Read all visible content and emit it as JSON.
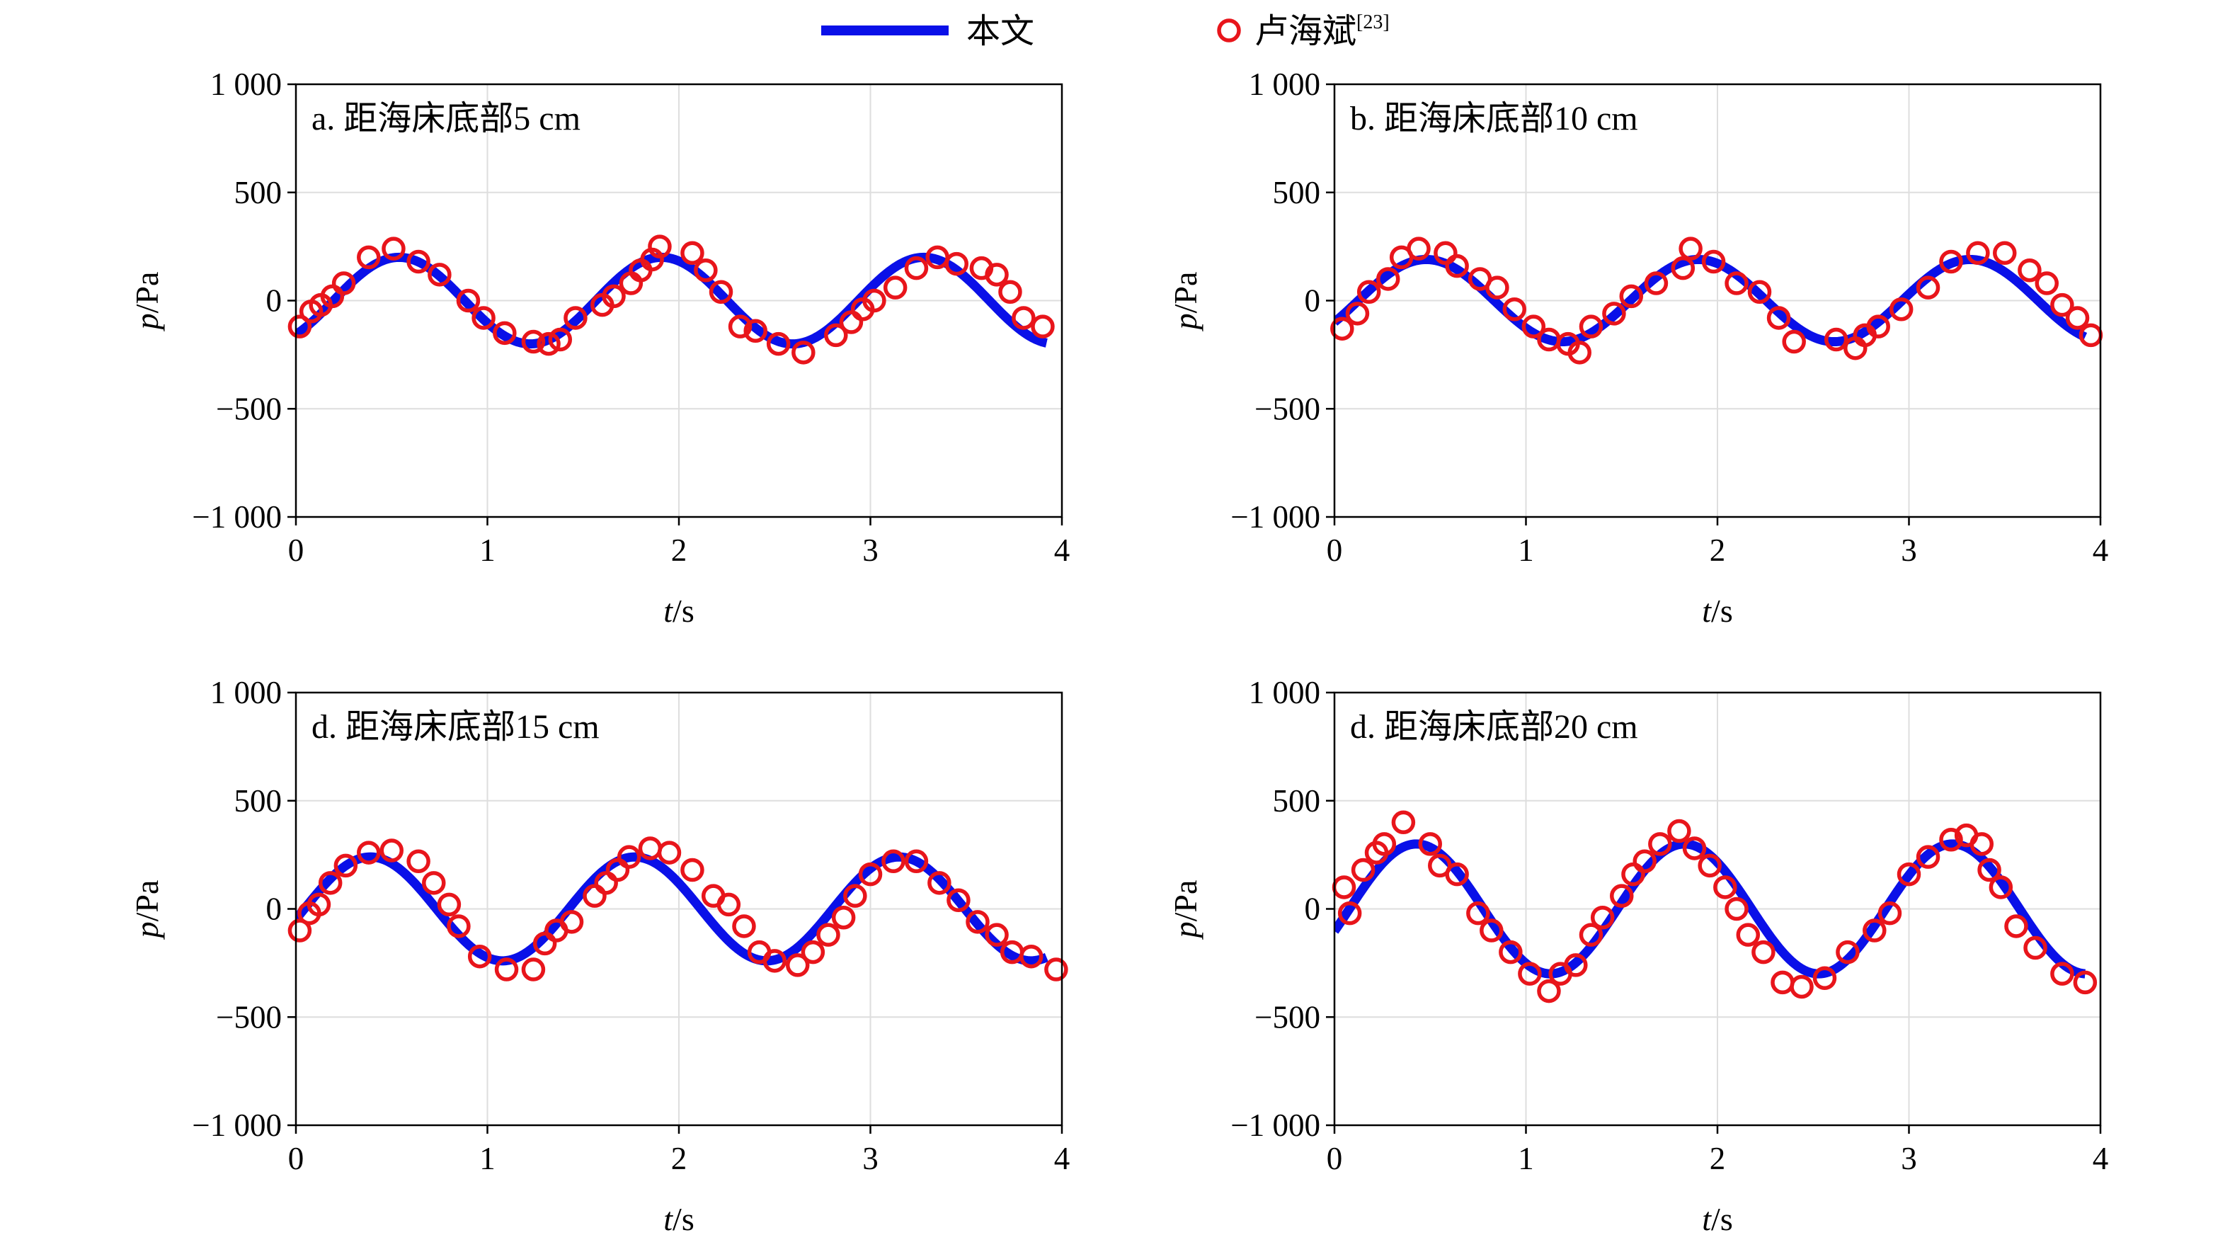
{
  "legend": {
    "model_label": "本文",
    "ref_label": "卢海斌",
    "ref_cite": "[23]",
    "model_color": "#0a10e8",
    "ref_color": "#e8151b"
  },
  "chart_data": [
    {
      "type": "line+scatter",
      "title": "a. 距海床底部5 cm",
      "xlabel_var": "t",
      "xlabel_unit": "/s",
      "ylabel_var": "p",
      "ylabel_unit": "/Pa",
      "xlim": [
        0,
        4
      ],
      "ylim": [
        -1000,
        1000
      ],
      "xticks": [
        "0",
        "1",
        "2",
        "3",
        "4"
      ],
      "yticks": [
        "1 000",
        "500",
        "0",
        "−500",
        "−1 000"
      ],
      "grid": true,
      "model": {
        "name": "本文",
        "amplitude": 200,
        "period": 1.37,
        "phase": -0.9
      },
      "measured": {
        "name": "卢海斌",
        "x": [
          0.02,
          0.08,
          0.13,
          0.19,
          0.25,
          0.38,
          0.51,
          0.64,
          0.75,
          0.9,
          0.98,
          1.09,
          1.24,
          1.32,
          1.38,
          1.46,
          1.6,
          1.66,
          1.75,
          1.8,
          1.86,
          1.9,
          2.07,
          2.14,
          2.22,
          2.32,
          2.4,
          2.52,
          2.65,
          2.82,
          2.9,
          2.96,
          3.02,
          3.13,
          3.24,
          3.35,
          3.45,
          3.58,
          3.66,
          3.73,
          3.8,
          3.9
        ],
        "y": [
          -120,
          -50,
          -20,
          20,
          80,
          200,
          240,
          180,
          120,
          0,
          -80,
          -150,
          -190,
          -200,
          -180,
          -80,
          -20,
          20,
          80,
          140,
          190,
          250,
          220,
          140,
          40,
          -120,
          -140,
          -200,
          -240,
          -160,
          -100,
          -40,
          0,
          60,
          150,
          200,
          170,
          150,
          120,
          40,
          -80,
          -120
        ]
      }
    },
    {
      "type": "line+scatter",
      "title": "b. 距海床底部10 cm",
      "xlabel_var": "t",
      "xlabel_unit": "/s",
      "ylabel_var": "p",
      "ylabel_unit": "/Pa",
      "xlim": [
        0,
        4
      ],
      "ylim": [
        -1000,
        1000
      ],
      "xticks": [
        "0",
        "1",
        "2",
        "3",
        "4"
      ],
      "yticks": [
        "1 000",
        "500",
        "0",
        "−500",
        "−1 000"
      ],
      "grid": true,
      "model": {
        "name": "本文",
        "amplitude": 190,
        "period": 1.42,
        "phase": -0.55
      },
      "measured": {
        "name": "卢海斌",
        "x": [
          0.04,
          0.12,
          0.18,
          0.28,
          0.35,
          0.44,
          0.58,
          0.64,
          0.76,
          0.85,
          0.94,
          1.04,
          1.12,
          1.22,
          1.28,
          1.34,
          1.46,
          1.55,
          1.68,
          1.82,
          1.86,
          1.98,
          2.1,
          2.22,
          2.32,
          2.4,
          2.62,
          2.72,
          2.77,
          2.84,
          2.96,
          3.1,
          3.22,
          3.36,
          3.5,
          3.63,
          3.72,
          3.8,
          3.88,
          3.95
        ],
        "y": [
          -130,
          -60,
          40,
          100,
          200,
          240,
          220,
          160,
          100,
          60,
          -40,
          -120,
          -180,
          -200,
          -240,
          -120,
          -60,
          20,
          80,
          150,
          240,
          180,
          80,
          40,
          -80,
          -190,
          -180,
          -220,
          -160,
          -120,
          -40,
          60,
          180,
          220,
          220,
          140,
          80,
          -20,
          -80,
          -160
        ]
      }
    },
    {
      "type": "line+scatter",
      "title": "d. 距海床底部15 cm",
      "xlabel_var": "t",
      "xlabel_unit": "/s",
      "ylabel_var": "p",
      "ylabel_unit": "/Pa",
      "xlim": [
        0,
        4
      ],
      "ylim": [
        -1000,
        1000
      ],
      "xticks": [
        "0",
        "1",
        "2",
        "3",
        "4"
      ],
      "yticks": [
        "1 000",
        "500",
        "0",
        "−500",
        "−1 000"
      ],
      "grid": true,
      "model": {
        "name": "本文",
        "amplitude": 240,
        "period": 1.38,
        "phase": -0.2
      },
      "measured": {
        "name": "卢海斌",
        "x": [
          0.02,
          0.07,
          0.12,
          0.18,
          0.26,
          0.38,
          0.5,
          0.64,
          0.72,
          0.8,
          0.85,
          0.96,
          1.1,
          1.24,
          1.3,
          1.36,
          1.44,
          1.56,
          1.62,
          1.68,
          1.74,
          1.85,
          1.95,
          2.07,
          2.18,
          2.26,
          2.34,
          2.42,
          2.5,
          2.62,
          2.7,
          2.78,
          2.86,
          2.92,
          3.0,
          3.12,
          3.24,
          3.36,
          3.46,
          3.56,
          3.66,
          3.74,
          3.84,
          3.97
        ],
        "y": [
          -100,
          -20,
          20,
          120,
          200,
          260,
          270,
          220,
          120,
          20,
          -80,
          -220,
          -280,
          -280,
          -160,
          -100,
          -60,
          60,
          120,
          180,
          240,
          280,
          260,
          180,
          60,
          20,
          -80,
          -200,
          -240,
          -260,
          -200,
          -120,
          -40,
          60,
          160,
          220,
          220,
          120,
          40,
          -60,
          -120,
          -200,
          -220,
          -280
        ]
      }
    },
    {
      "type": "line+scatter",
      "title": "d. 距海床底部20 cm",
      "xlabel_var": "t",
      "xlabel_unit": "/s",
      "ylabel_var": "p",
      "ylabel_unit": "/Pa",
      "xlim": [
        0,
        4
      ],
      "ylim": [
        -1000,
        1000
      ],
      "xticks": [
        "0",
        "1",
        "2",
        "3",
        "4"
      ],
      "yticks": [
        "1 000",
        "500",
        "0",
        "−500",
        "−1 000"
      ],
      "grid": true,
      "model": {
        "name": "本文",
        "amplitude": 300,
        "period": 1.4,
        "phase": -0.35
      },
      "measured": {
        "name": "卢海斌",
        "x": [
          0.05,
          0.08,
          0.15,
          0.22,
          0.26,
          0.36,
          0.5,
          0.55,
          0.64,
          0.75,
          0.82,
          0.92,
          1.02,
          1.12,
          1.18,
          1.26,
          1.34,
          1.4,
          1.5,
          1.56,
          1.62,
          1.7,
          1.8,
          1.88,
          1.96,
          2.04,
          2.1,
          2.16,
          2.24,
          2.34,
          2.44,
          2.56,
          2.68,
          2.82,
          2.9,
          3.0,
          3.1,
          3.22,
          3.3,
          3.38,
          3.42,
          3.48,
          3.56,
          3.66,
          3.8,
          3.92
        ],
        "y": [
          100,
          -20,
          180,
          260,
          300,
          400,
          300,
          200,
          160,
          -20,
          -100,
          -200,
          -300,
          -380,
          -300,
          -260,
          -120,
          -40,
          60,
          160,
          220,
          300,
          360,
          280,
          200,
          100,
          0,
          -120,
          -200,
          -340,
          -360,
          -320,
          -200,
          -100,
          -20,
          160,
          240,
          320,
          340,
          300,
          180,
          100,
          -80,
          -180,
          -300,
          -340
        ]
      }
    }
  ]
}
